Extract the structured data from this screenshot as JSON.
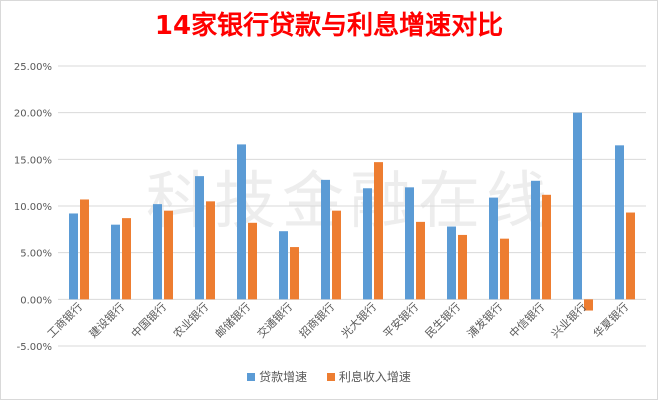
{
  "chart_data": {
    "type": "bar",
    "title": "14家银行贷款与利息增速对比",
    "watermark": "科技金融在线",
    "categories": [
      "工商银行",
      "建设银行",
      "中国银行",
      "农业银行",
      "邮储银行",
      "交通银行",
      "招商银行",
      "光大银行",
      "平安银行",
      "民生银行",
      "浦发银行",
      "中信银行",
      "兴业银行",
      "华夏银行"
    ],
    "series": [
      {
        "name": "贷款增速",
        "color": "#5b9bd5",
        "values": [
          9.2,
          8.0,
          10.2,
          13.2,
          16.6,
          7.3,
          12.8,
          11.9,
          12.0,
          7.8,
          10.9,
          12.7,
          20.0,
          16.5
        ]
      },
      {
        "name": "利息收入增速",
        "color": "#ed7d31",
        "values": [
          10.7,
          8.7,
          9.5,
          10.5,
          8.2,
          5.6,
          9.5,
          14.7,
          8.3,
          6.9,
          6.5,
          11.2,
          -1.2,
          9.3
        ]
      }
    ],
    "y_ticks": [
      "25.00%",
      "20.00%",
      "15.00%",
      "10.00%",
      "5.00%",
      "0.00%",
      "-5.00%"
    ],
    "ylim": [
      -5,
      25
    ],
    "grid": true,
    "legend_position": "bottom"
  }
}
